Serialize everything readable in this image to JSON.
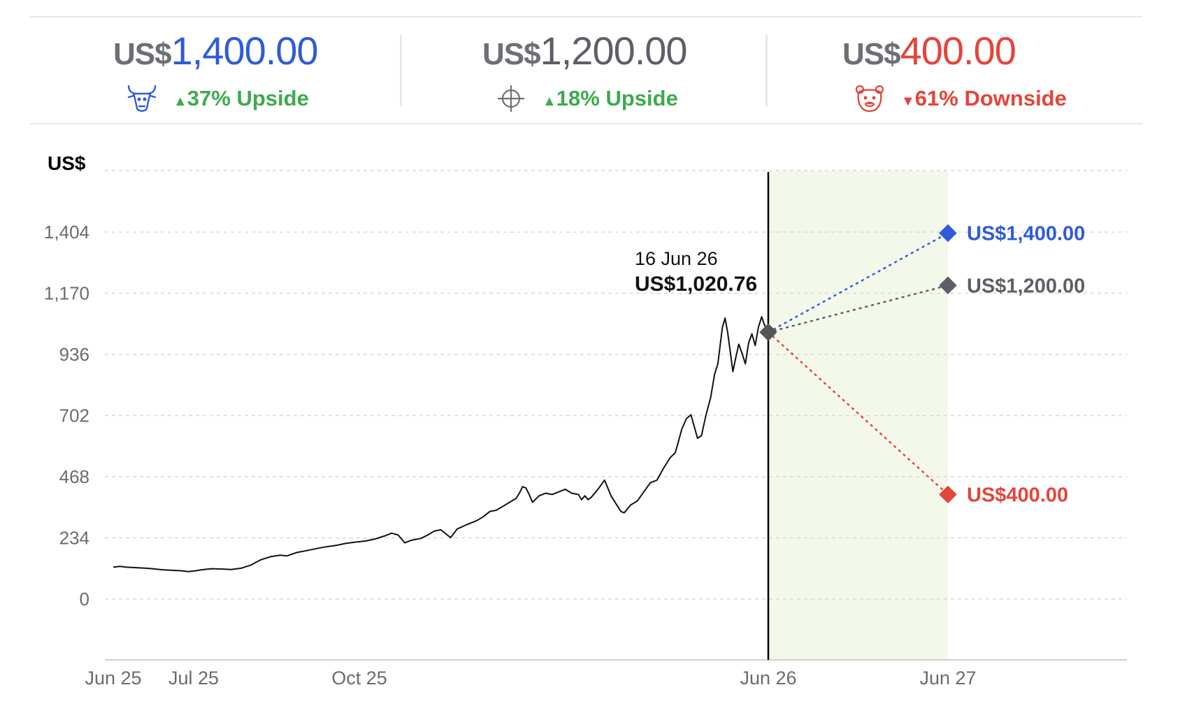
{
  "colors": {
    "bull": "#2f5bd9",
    "bear": "#e5443a",
    "neutral": "#5e5f66",
    "up": "#3daa4f",
    "projection_band": "#f3f8ea",
    "price_line": "#111111"
  },
  "targets": [
    {
      "id": "bull",
      "currency": "US$",
      "value": "1,400.00",
      "icon": "bull-icon",
      "direction": "up",
      "change": "37% Upside",
      "arrow": "▲"
    },
    {
      "id": "consensus",
      "currency": "US$",
      "value": "1,200.00",
      "icon": "crosshair-icon",
      "direction": "up",
      "change": "18% Upside",
      "arrow": "▲"
    },
    {
      "id": "bear",
      "currency": "US$",
      "value": "400.00",
      "icon": "bear-icon",
      "direction": "down",
      "change": "61% Downside",
      "arrow": "▼"
    }
  ],
  "chart_data": {
    "type": "line",
    "ylabel": "US$",
    "yticks": [
      "1,404",
      "1,170",
      "936",
      "702",
      "468",
      "234",
      "0"
    ],
    "ytick_values": [
      1404,
      1170,
      936,
      702,
      468,
      234,
      0
    ],
    "xticks": [
      "Jun 25",
      "Jul 25",
      "Oct 25",
      "Jun 26",
      "Jun 27"
    ],
    "grid": true,
    "current": {
      "date": "16 Jun 26",
      "price": "US$1,020.76",
      "value": 1020.76
    },
    "series": [
      {
        "points": [
          [
            0.0,
            122
          ],
          [
            0.01,
            125
          ],
          [
            0.02,
            122
          ],
          [
            0.035,
            120
          ],
          [
            0.05,
            118
          ],
          [
            0.06,
            116
          ],
          [
            0.075,
            112
          ],
          [
            0.09,
            110
          ],
          [
            0.105,
            108
          ],
          [
            0.115,
            105
          ],
          [
            0.125,
            108
          ],
          [
            0.135,
            112
          ],
          [
            0.15,
            116
          ],
          [
            0.165,
            115
          ],
          [
            0.18,
            113
          ],
          [
            0.195,
            118
          ],
          [
            0.21,
            130
          ],
          [
            0.225,
            150
          ],
          [
            0.24,
            162
          ],
          [
            0.255,
            168
          ],
          [
            0.265,
            165
          ],
          [
            0.28,
            178
          ],
          [
            0.295,
            185
          ],
          [
            0.31,
            193
          ],
          [
            0.325,
            200
          ],
          [
            0.34,
            205
          ],
          [
            0.355,
            213
          ],
          [
            0.37,
            218
          ],
          [
            0.385,
            222
          ],
          [
            0.4,
            230
          ],
          [
            0.415,
            242
          ],
          [
            0.425,
            252
          ],
          [
            0.435,
            245
          ],
          [
            0.44,
            230
          ],
          [
            0.445,
            215
          ],
          [
            0.455,
            225
          ],
          [
            0.47,
            232
          ],
          [
            0.48,
            245
          ],
          [
            0.49,
            260
          ],
          [
            0.5,
            265
          ],
          [
            0.51,
            245
          ],
          [
            0.515,
            235
          ],
          [
            0.525,
            268
          ],
          [
            0.54,
            285
          ],
          [
            0.555,
            300
          ],
          [
            0.565,
            315
          ],
          [
            0.575,
            335
          ],
          [
            0.585,
            340
          ],
          [
            0.595,
            355
          ],
          [
            0.605,
            370
          ],
          [
            0.615,
            385
          ],
          [
            0.62,
            405
          ],
          [
            0.625,
            430
          ],
          [
            0.63,
            425
          ],
          [
            0.635,
            400
          ],
          [
            0.64,
            370
          ],
          [
            0.65,
            395
          ],
          [
            0.66,
            405
          ],
          [
            0.67,
            400
          ],
          [
            0.68,
            410
          ],
          [
            0.69,
            420
          ],
          [
            0.7,
            405
          ],
          [
            0.71,
            400
          ],
          [
            0.715,
            380
          ],
          [
            0.72,
            395
          ],
          [
            0.725,
            380
          ],
          [
            0.73,
            390
          ],
          [
            0.74,
            420
          ],
          [
            0.75,
            455
          ],
          [
            0.76,
            395
          ],
          [
            0.77,
            355
          ],
          [
            0.775,
            335
          ],
          [
            0.78,
            330
          ],
          [
            0.79,
            360
          ],
          [
            0.8,
            375
          ],
          [
            0.81,
            410
          ],
          [
            0.82,
            445
          ],
          [
            0.83,
            455
          ],
          [
            0.84,
            500
          ],
          [
            0.85,
            540
          ],
          [
            0.858,
            560
          ],
          [
            0.862,
            595
          ],
          [
            0.868,
            650
          ],
          [
            0.875,
            690
          ],
          [
            0.882,
            705
          ],
          [
            0.887,
            660
          ],
          [
            0.892,
            615
          ],
          [
            0.898,
            625
          ],
          [
            0.905,
            705
          ],
          [
            0.912,
            770
          ],
          [
            0.918,
            860
          ],
          [
            0.923,
            900
          ],
          [
            0.927,
            980
          ],
          [
            0.93,
            1040
          ],
          [
            0.934,
            1075
          ],
          [
            0.938,
            1020
          ],
          [
            0.942,
            945
          ],
          [
            0.946,
            870
          ],
          [
            0.95,
            920
          ],
          [
            0.955,
            975
          ],
          [
            0.96,
            940
          ],
          [
            0.965,
            900
          ],
          [
            0.97,
            980
          ],
          [
            0.975,
            1015
          ],
          [
            0.98,
            970
          ],
          [
            0.985,
            1040
          ],
          [
            0.99,
            1080
          ],
          [
            0.994,
            1050
          ],
          [
            1.0,
            1020.76
          ]
        ]
      }
    ],
    "projections": [
      {
        "id": "bull",
        "label": "US$1,400.00",
        "value": 1400
      },
      {
        "id": "consensus",
        "label": "US$1,200.00",
        "value": 1200
      },
      {
        "id": "bear",
        "label": "US$400.00",
        "value": 400
      }
    ]
  }
}
